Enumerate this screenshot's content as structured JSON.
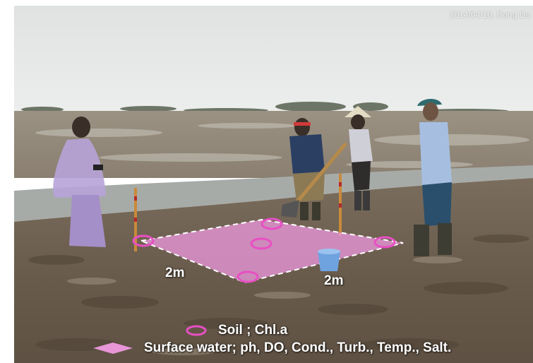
{
  "photo": {
    "date_stamp": "2014/04/10, Dong Du"
  },
  "annotations": {
    "side_left": "2m",
    "side_right": "2m"
  },
  "legend": {
    "soil": "Soil ; Chl.a",
    "water": "Surface water; ph, DO, Cond., Turb., Temp., Salt."
  },
  "colors": {
    "sample_circle": "#e84fc4",
    "quadrat_fill": "#e896d8",
    "sky": "#e9ebea",
    "mud": "#6b5d4e"
  }
}
